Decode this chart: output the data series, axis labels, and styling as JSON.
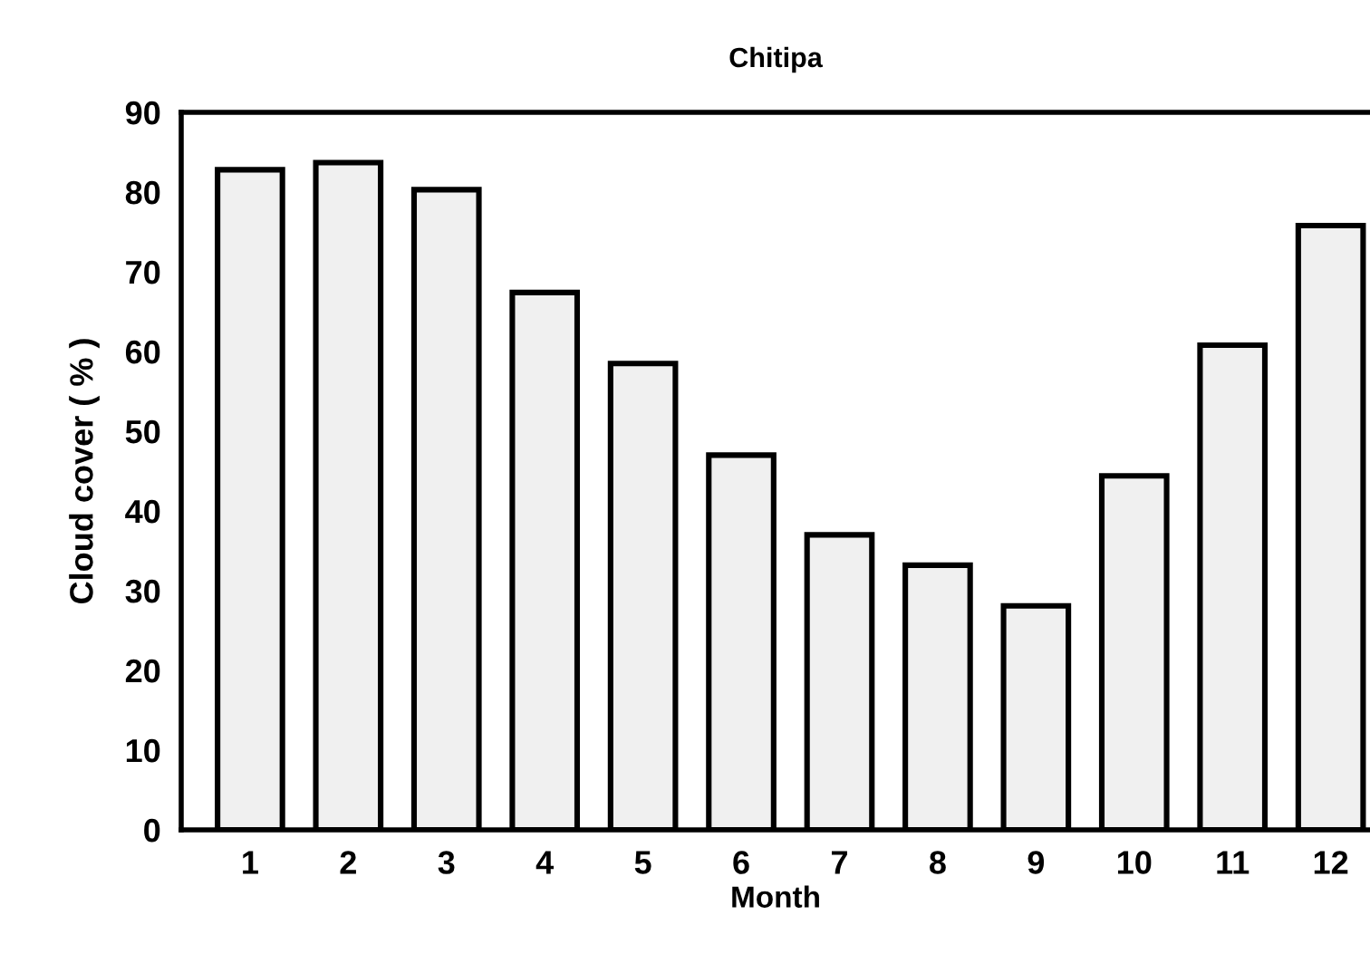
{
  "chart_data": {
    "type": "bar",
    "title": "Chitipa",
    "xlabel": "Month",
    "ylabel": "Cloud cover ( % )",
    "categories": [
      "1",
      "2",
      "3",
      "4",
      "5",
      "6",
      "7",
      "8",
      "9",
      "10",
      "11",
      "12"
    ],
    "values": [
      82.8,
      83.7,
      80.3,
      67.4,
      58.5,
      47.0,
      37.0,
      33.2,
      28.1,
      44.4,
      60.8,
      75.8
    ],
    "color": "#f0f0f0",
    "ylim": [
      0,
      90
    ],
    "yticks": [
      0,
      10,
      20,
      30,
      40,
      50,
      60,
      70,
      80,
      90
    ],
    "grid": false
  }
}
